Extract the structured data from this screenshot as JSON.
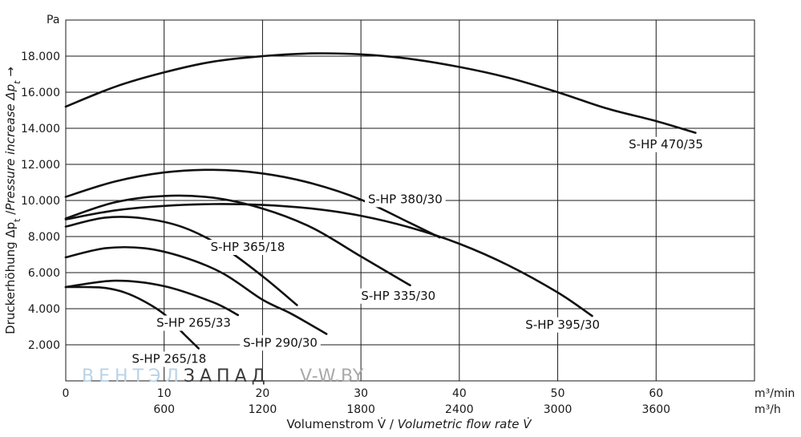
{
  "chart_data": {
    "type": "line",
    "title": "",
    "ylabel": "Druckerhöhung Δpt /Pressure increase Δpt →",
    "ylabel_parts": {
      "de": "Druckerhöhung Δp",
      "sub": "t",
      "mid": " /",
      "en": "Pressure increase Δp",
      "arrow": " →"
    },
    "y_unit": "Pa",
    "xlabel_de": "Volumenstrom V̇ / ",
    "xlabel_en": "Volumetric flow rate V̇",
    "x_unit_min": "m³/min",
    "x_unit_h": "m³/h",
    "xlim": [
      0,
      70
    ],
    "ylim": [
      0,
      20000
    ],
    "x_ticks_min": [
      "0",
      "10",
      "20",
      "30",
      "40",
      "50",
      "60"
    ],
    "x_ticks_min_values": [
      0,
      10,
      20,
      30,
      40,
      50,
      60
    ],
    "x_ticks_h": [
      "600",
      "1200",
      "1800",
      "2400",
      "3000",
      "3600"
    ],
    "x_ticks_h_values": [
      10,
      20,
      30,
      40,
      50,
      60
    ],
    "y_ticks": [
      "2.000",
      "4.000",
      "6.000",
      "8.000",
      "10.000",
      "12.000",
      "14.000",
      "16.000",
      "18.000"
    ],
    "y_ticks_values": [
      2000,
      4000,
      6000,
      8000,
      10000,
      12000,
      14000,
      16000,
      18000
    ],
    "grid": true,
    "legend": "none (series labeled inline)",
    "series": [
      {
        "name": "S-HP 470/35",
        "x": [
          0,
          5,
          10,
          15,
          20,
          25,
          30,
          35,
          40,
          45,
          50,
          55,
          60,
          64
        ],
        "y": [
          15200,
          16300,
          17100,
          17700,
          18000,
          18150,
          18100,
          17850,
          17400,
          16800,
          16000,
          15100,
          14400,
          13750
        ],
        "label_anchor": [
          61,
          12900
        ]
      },
      {
        "name": "S-HP 380/30",
        "x": [
          0,
          5,
          10,
          15,
          20,
          25,
          30,
          35,
          38
        ],
        "y": [
          10200,
          11050,
          11550,
          11700,
          11500,
          10950,
          10050,
          8750,
          7950
        ],
        "label_anchor": [
          34.5,
          9850
        ]
      },
      {
        "name": "S-HP 395/30",
        "x": [
          0,
          5,
          10,
          15,
          20,
          25,
          30,
          35,
          40,
          45,
          50,
          53.5
        ],
        "y": [
          8950,
          9450,
          9700,
          9800,
          9750,
          9550,
          9150,
          8500,
          7600,
          6400,
          4900,
          3600
        ],
        "label_anchor": [
          50.5,
          2900
        ]
      },
      {
        "name": "S-HP 335/30",
        "x": [
          0,
          5,
          10,
          15,
          20,
          25,
          30,
          35
        ],
        "y": [
          9000,
          9900,
          10250,
          10150,
          9550,
          8500,
          6900,
          5300
        ],
        "label_anchor": [
          33.8,
          4500
        ]
      },
      {
        "name": "S-HP 365/18",
        "x": [
          0,
          4,
          8,
          12,
          16,
          20,
          23.5
        ],
        "y": [
          8550,
          9050,
          9000,
          8500,
          7400,
          5800,
          4200
        ],
        "label_anchor": [
          18.5,
          7200
        ]
      },
      {
        "name": "S-HP 265/33",
        "x": [
          0,
          5,
          10,
          15,
          17.5
        ],
        "y": [
          5200,
          5550,
          5250,
          4350,
          3650
        ],
        "label_anchor": [
          13,
          3000
        ]
      },
      {
        "name": "S-HP 290/30",
        "x": [
          0,
          4,
          8,
          12,
          16,
          20,
          23,
          26.5
        ],
        "y": [
          6850,
          7350,
          7350,
          6850,
          5950,
          4500,
          3700,
          2600
        ],
        "label_anchor": [
          21.8,
          1900
        ]
      },
      {
        "name": "S-HP 265/18",
        "x": [
          0,
          2,
          4,
          6,
          8,
          10,
          12,
          13.5
        ],
        "y": [
          5200,
          5200,
          5150,
          4900,
          4400,
          3700,
          2600,
          1800
        ],
        "label_anchor": [
          10.5,
          1000
        ]
      }
    ]
  },
  "watermark": {
    "part1": "ВЕНТЭЛ",
    "part2": "ЗАПАД",
    "part3": "V-W.BY",
    "color_light": "#b9d3e6",
    "color_dark": "#3a3a3a",
    "color_mid": "#a9a9a9"
  },
  "colors": {
    "curve": "#111111",
    "grid": "#1a1a1a",
    "text": "#1a1a1a"
  }
}
